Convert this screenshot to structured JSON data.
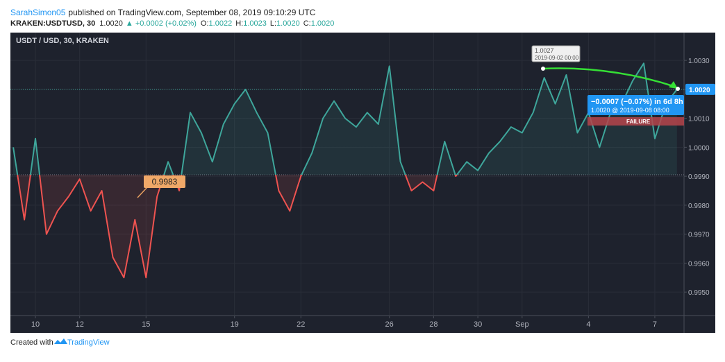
{
  "header": {
    "author": "SarahSimon05",
    "published": "published on TradingView.com, September 08, 2019 09:10:29 UTC",
    "symbol": "KRAKEN:USDTUSD, 30",
    "price": "1.0020",
    "change": "▲ +0.0002 (+0.02%)",
    "ohlc": [
      {
        "label": "O:",
        "value": "1.0022"
      },
      {
        "label": "H:",
        "value": "1.0023"
      },
      {
        "label": "L:",
        "value": "1.0020"
      },
      {
        "label": "C:",
        "value": "1.0020"
      }
    ]
  },
  "footer": {
    "created": "Created with",
    "brand": "TradingView"
  },
  "chart_data": {
    "type": "line",
    "title": "USDT / USD, 30, KRAKEN",
    "x": [
      9,
      9.5,
      10,
      10.5,
      11,
      11.5,
      12,
      12.5,
      13,
      13.5,
      14,
      14.5,
      15,
      15.5,
      16,
      16.5,
      17,
      17.5,
      18,
      18.5,
      19,
      19.5,
      20,
      20.5,
      21,
      21.5,
      22,
      22.5,
      23,
      23.5,
      24,
      24.5,
      25,
      25.5,
      26,
      26.5,
      27,
      27.5,
      28,
      28.5,
      29,
      29.5,
      30,
      30.5,
      31,
      31.5,
      32,
      32.5,
      33,
      33.5,
      34,
      34.5,
      35,
      35.5,
      36,
      36.5,
      37,
      37.5,
      38,
      38.5,
      39
    ],
    "series": [
      {
        "name": "USDT / USD",
        "color": "#3ea69b",
        "color_below": "#ef5350",
        "values": [
          1.0,
          0.9975,
          1.0003,
          0.997,
          0.9978,
          0.9983,
          0.9989,
          0.9978,
          0.9985,
          0.9962,
          0.9955,
          0.9975,
          0.9955,
          0.9983,
          0.9995,
          0.9985,
          1.0012,
          1.0005,
          0.9995,
          1.0008,
          1.0015,
          1.002,
          1.0012,
          1.0005,
          0.9985,
          0.9978,
          0.999,
          0.9998,
          1.001,
          1.0016,
          1.001,
          1.0007,
          1.0012,
          1.0008,
          1.0028,
          0.9995,
          0.9985,
          0.9988,
          0.9985,
          1.0002,
          0.999,
          0.9995,
          0.9992,
          0.9998,
          1.0002,
          1.0007,
          1.0005,
          1.0012,
          1.0024,
          1.0015,
          1.0025,
          1.0005,
          1.0012,
          1.0,
          1.0012,
          1.0015,
          1.0023,
          1.0029,
          1.0003,
          1.0015,
          1.002
        ]
      }
    ],
    "baseline": 0.99905,
    "last_price": {
      "value": 1.002,
      "label": "1.0020"
    },
    "xlim": [
      8.87,
      39.32
    ],
    "xticks": [
      10,
      12,
      15,
      19,
      22,
      26,
      28,
      30,
      {
        "value": 32,
        "label": "Sep"
      },
      {
        "value": 35,
        "label": "4"
      },
      {
        "value": 38,
        "label": "7"
      }
    ],
    "ylim": [
      0.99419,
      1.00396
    ],
    "yticks": [
      {
        "value": 0.995,
        "label": "0.9950"
      },
      {
        "value": 0.996,
        "label": "0.9960"
      },
      {
        "value": 0.997,
        "label": "0.9970"
      },
      {
        "value": 0.998,
        "label": "0.9980"
      },
      {
        "value": 0.999,
        "label": "0.9990"
      },
      {
        "value": 1.0,
        "label": "1.0000"
      },
      {
        "value": 1.001,
        "label": "1.0010"
      },
      {
        "value": 1.002,
        "label": "1.0020"
      },
      {
        "value": 1.003,
        "label": "1.0030"
      }
    ],
    "grid": true,
    "annotations": {
      "callout": "0.9983",
      "high_price": "1.0027",
      "high_date": "2019-09-02 00:00",
      "projection_change": "−0.0007 (−0.07%) in 6d 8h",
      "projection_target": "1.0020 @ 2019-09-08 08:00",
      "status": "FAILURE"
    }
  }
}
